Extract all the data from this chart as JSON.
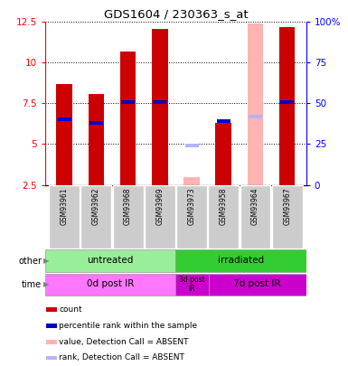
{
  "title": "GDS1604 / 230363_s_at",
  "samples": [
    "GSM93961",
    "GSM93962",
    "GSM93968",
    "GSM93969",
    "GSM93973",
    "GSM93958",
    "GSM93964",
    "GSM93967"
  ],
  "count_values": [
    8.7,
    8.1,
    10.7,
    12.1,
    null,
    6.3,
    null,
    12.2
  ],
  "count_absent_values": [
    null,
    null,
    null,
    null,
    3.0,
    null,
    12.4,
    null
  ],
  "rank_values": [
    6.5,
    6.3,
    7.6,
    7.6,
    null,
    6.4,
    null,
    7.6
  ],
  "rank_absent_values": [
    null,
    null,
    null,
    null,
    4.9,
    null,
    6.7,
    null
  ],
  "ylim_left": [
    2.5,
    12.5
  ],
  "ylim_right": [
    0,
    100
  ],
  "left_ticks": [
    2.5,
    5.0,
    7.5,
    10.0,
    12.5
  ],
  "right_ticks": [
    0,
    25,
    50,
    75,
    100
  ],
  "left_tick_labels": [
    "2.5",
    "5",
    "7.5",
    "10",
    "12.5"
  ],
  "right_tick_labels": [
    "0",
    "25",
    "50",
    "75",
    "100%"
  ],
  "color_count": "#cc0000",
  "color_rank": "#0000cc",
  "color_count_absent": "#ffb3b3",
  "color_rank_absent": "#b3b3ff",
  "group_untreated_color": "#99ee99",
  "group_irradiated_color": "#33cc33",
  "time_0d_color": "#ff77ff",
  "time_3d_color": "#cc00cc",
  "time_7d_color": "#cc00cc",
  "sample_box_color": "#cccccc",
  "legend_items": [
    {
      "label": "count",
      "color": "#cc0000"
    },
    {
      "label": "percentile rank within the sample",
      "color": "#0000cc"
    },
    {
      "label": "value, Detection Call = ABSENT",
      "color": "#ffb3b3"
    },
    {
      "label": "rank, Detection Call = ABSENT",
      "color": "#b3b3ff"
    }
  ]
}
